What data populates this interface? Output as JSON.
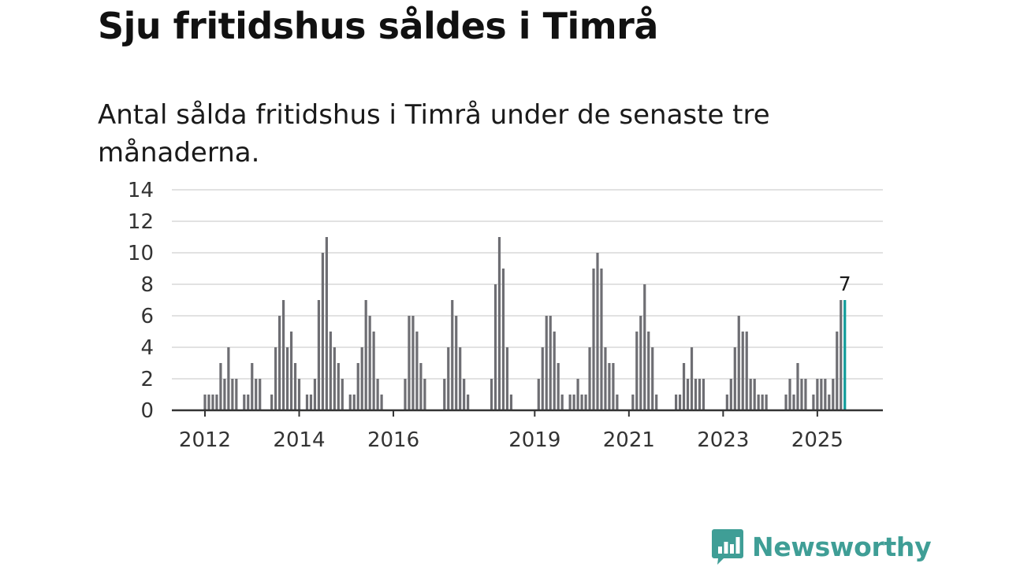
{
  "header": {
    "title": "Sju fritidshus såldes i Timrå",
    "subtitle": "Antal sålda fritidshus i Timrå under de senaste tre månaderna."
  },
  "brand": {
    "name": "Newsworthy",
    "logo_icon": "newsworthy-chart-bubble-icon",
    "color": "#3f9e96"
  },
  "colors": {
    "bar": "#6e6e73",
    "highlight": "#119c9a",
    "grid": "#d9d9d9",
    "axis": "#333333"
  },
  "chart_data": {
    "type": "bar",
    "title": "Sju fritidshus såldes i Timrå",
    "subtitle": "Antal sålda fritidshus i Timrå under de senaste tre månaderna.",
    "xlabel": "",
    "ylabel": "",
    "ylim": [
      0,
      14
    ],
    "yticks": [
      0,
      2,
      4,
      6,
      8,
      10,
      12,
      14
    ],
    "grid": true,
    "x_start": "2012-01",
    "x_tick_labels": [
      {
        "label": "2012",
        "month_index": 0
      },
      {
        "label": "2014",
        "month_index": 24
      },
      {
        "label": "2016",
        "month_index": 48
      },
      {
        "label": "2019",
        "month_index": 84
      },
      {
        "label": "2021",
        "month_index": 108
      },
      {
        "label": "2023",
        "month_index": 132
      },
      {
        "label": "2025",
        "month_index": 156
      }
    ],
    "values": [
      1,
      1,
      1,
      1,
      3,
      2,
      4,
      2,
      2,
      0,
      1,
      1,
      3,
      2,
      2,
      0,
      0,
      1,
      4,
      6,
      7,
      4,
      5,
      3,
      2,
      0,
      1,
      1,
      2,
      7,
      10,
      11,
      5,
      4,
      3,
      2,
      0,
      1,
      1,
      3,
      4,
      7,
      6,
      5,
      2,
      1,
      0,
      0,
      0,
      0,
      0,
      2,
      6,
      6,
      5,
      3,
      2,
      0,
      0,
      0,
      0,
      2,
      4,
      7,
      6,
      4,
      2,
      1,
      0,
      0,
      0,
      0,
      0,
      2,
      8,
      11,
      9,
      4,
      1,
      0,
      0,
      0,
      0,
      0,
      0,
      2,
      4,
      6,
      6,
      5,
      3,
      1,
      0,
      1,
      1,
      2,
      1,
      1,
      4,
      9,
      10,
      9,
      4,
      3,
      3,
      1,
      0,
      0,
      0,
      1,
      5,
      6,
      8,
      5,
      4,
      1,
      0,
      0,
      0,
      0,
      1,
      1,
      3,
      2,
      4,
      2,
      2,
      2,
      0,
      0,
      0,
      0,
      0,
      1,
      2,
      4,
      6,
      5,
      5,
      2,
      2,
      1,
      1,
      1,
      0,
      0,
      0,
      0,
      1,
      2,
      1,
      3,
      2,
      2,
      0,
      1,
      2,
      2,
      2,
      1,
      2,
      5,
      7,
      7
    ],
    "highlight_index": 163,
    "highlight_label": "7"
  }
}
